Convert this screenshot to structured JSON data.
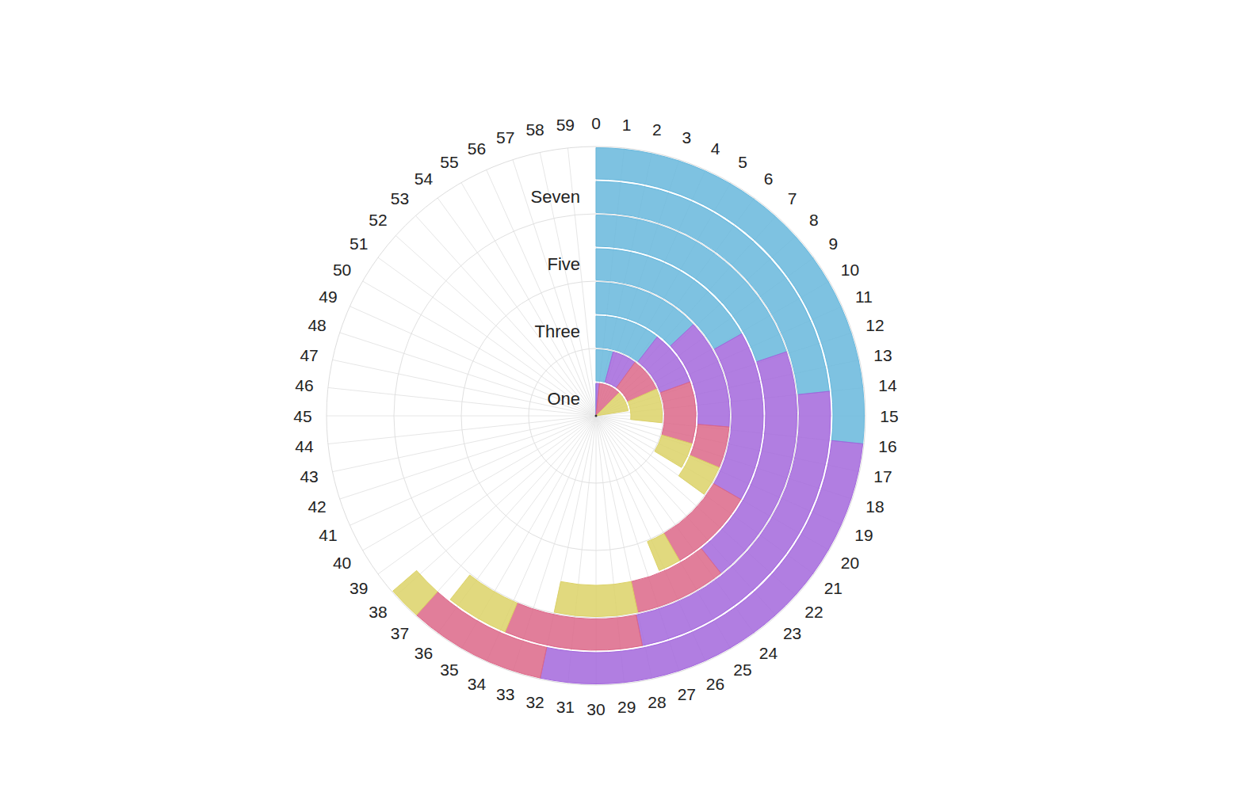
{
  "chart_data": {
    "type": "radial_bar",
    "stacked": true,
    "grid": true,
    "categories": [
      "One",
      null,
      "Three",
      null,
      "Five",
      null,
      "Seven",
      null
    ],
    "xlim": [
      0,
      60
    ],
    "xticks": [
      0,
      1,
      2,
      3,
      4,
      5,
      6,
      7,
      8,
      9,
      10,
      11,
      12,
      13,
      14,
      15,
      16,
      17,
      18,
      19,
      20,
      21,
      22,
      23,
      24,
      25,
      26,
      27,
      28,
      29,
      30,
      31,
      32,
      33,
      34,
      35,
      36,
      37,
      38,
      39,
      40,
      41,
      42,
      43,
      44,
      45,
      46,
      47,
      48,
      49,
      50,
      51,
      52,
      53,
      54,
      55,
      56,
      57,
      58,
      59
    ],
    "series": [
      {
        "color": "#67b7dc",
        "values": [
          0,
          2.5,
          6.3,
          7.8,
          10.1,
          11.9,
          14,
          16
        ]
      },
      {
        "color": "#a367dc",
        "values": [
          1,
          3.5,
          5.4,
          8,
          9.9,
          11.7,
          14.1,
          16
        ]
      },
      {
        "color": "#dc6788",
        "values": [
          6.5,
          5,
          6,
          3,
          5,
          4.4,
          5.7,
          5
        ]
      },
      {
        "color": "#dcd267",
        "values": [
          6,
          5,
          2.5,
          2.2,
          1.3,
          4,
          2.6,
          1.2
        ]
      }
    ]
  }
}
